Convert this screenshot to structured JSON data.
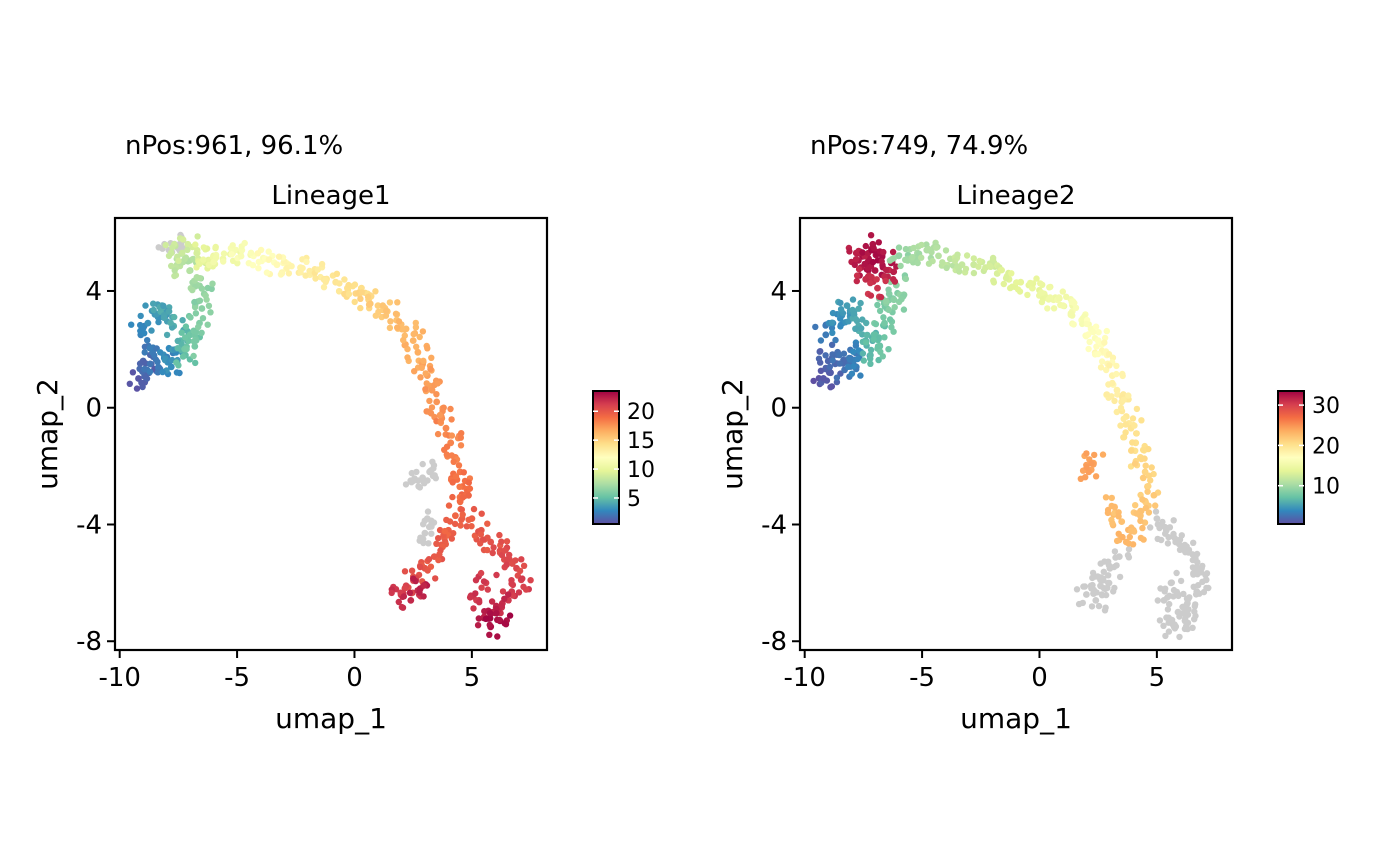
{
  "chart_data": [
    {
      "type": "scatter",
      "subtitle": "nPos:961, 96.1%",
      "title": "Lineage1",
      "xlabel": "umap_1",
      "ylabel": "umap_2",
      "xlim": [
        -10.2,
        8.2
      ],
      "ylim": [
        -8.3,
        6.5
      ],
      "xticks": [
        -10,
        -5,
        0,
        5
      ],
      "yticks": [
        -8,
        -4,
        0,
        4
      ],
      "xtick_labels": [
        "-10",
        "-5",
        "0",
        "5"
      ],
      "ytick_labels": [
        "-8",
        "-4",
        "0",
        "4"
      ],
      "colorbar": {
        "min": 0.5,
        "max": 23.5,
        "ticks": [
          5,
          10,
          15,
          20
        ],
        "tick_labels": [
          "5",
          "10",
          "15",
          "20"
        ]
      },
      "color_scale": "Spectral (blue-green-yellow-red)",
      "na_color": "#cccccc",
      "legend_position": "right",
      "grid": false,
      "points": [
        [
          -9.2,
          1.0,
          0.8
        ],
        [
          -8.9,
          1.2,
          1.3
        ],
        [
          -9.0,
          1.6,
          1.6
        ],
        [
          -8.7,
          1.5,
          2.0
        ],
        [
          -8.6,
          1.9,
          2.3
        ],
        [
          -8.3,
          1.3,
          2.4
        ],
        [
          -8.1,
          1.7,
          2.8
        ],
        [
          -7.8,
          1.4,
          3.0
        ],
        [
          -7.6,
          1.9,
          3.2
        ],
        [
          -9.1,
          2.5,
          2.6
        ],
        [
          -8.8,
          2.9,
          3.1
        ],
        [
          -8.5,
          3.2,
          3.4
        ],
        [
          -8.2,
          3.5,
          3.8
        ],
        [
          -7.9,
          3.3,
          4.0
        ],
        [
          -7.7,
          2.8,
          4.3
        ],
        [
          -7.4,
          2.3,
          4.6
        ],
        [
          -7.2,
          1.8,
          5.0
        ],
        [
          -7.0,
          2.5,
          5.4
        ],
        [
          -6.8,
          2.1,
          5.7
        ],
        [
          -6.6,
          2.9,
          6.0
        ],
        [
          -6.5,
          3.4,
          6.3
        ],
        [
          -6.4,
          3.9,
          6.6
        ],
        [
          -6.7,
          4.2,
          7.0
        ],
        [
          -7.0,
          4.7,
          7.4
        ],
        [
          -7.3,
          5.0,
          7.8
        ],
        [
          -7.6,
          4.8,
          8.2
        ],
        [
          -7.8,
          5.3,
          8.6
        ],
        [
          -7.1,
          5.6,
          9.0
        ],
        [
          -6.7,
          5.3,
          9.4
        ],
        [
          -6.3,
          5.0,
          9.8
        ],
        [
          -6.0,
          5.2,
          10.2
        ],
        [
          -5.6,
          5.1,
          10.6
        ],
        [
          -5.2,
          5.3,
          11.0
        ],
        [
          -4.8,
          5.4,
          11.4
        ],
        [
          -4.3,
          5.2,
          11.8
        ],
        [
          -3.8,
          5.1,
          12.1
        ],
        [
          -3.3,
          4.9,
          12.4
        ],
        [
          -2.8,
          4.9,
          12.7
        ],
        [
          -2.3,
          4.8,
          13.0
        ],
        [
          -1.8,
          4.6,
          13.3
        ],
        [
          -1.3,
          4.4,
          13.6
        ],
        [
          -0.8,
          4.3,
          13.9
        ],
        [
          -0.3,
          4.1,
          14.2
        ],
        [
          0.2,
          3.9,
          14.5
        ],
        [
          0.6,
          3.7,
          14.8
        ],
        [
          1.0,
          3.5,
          15.1
        ],
        [
          1.4,
          3.3,
          15.4
        ],
        [
          1.8,
          3.0,
          15.7
        ],
        [
          2.2,
          2.7,
          16.0
        ],
        [
          2.5,
          2.3,
          16.3
        ],
        [
          2.7,
          1.9,
          16.6
        ],
        [
          2.9,
          1.5,
          16.9
        ],
        [
          3.1,
          1.1,
          17.1
        ],
        [
          3.3,
          0.6,
          17.3
        ],
        [
          3.5,
          0.2,
          17.5
        ],
        [
          3.7,
          -0.3,
          17.7
        ],
        [
          3.9,
          -0.7,
          17.9
        ],
        [
          4.1,
          -1.2,
          18.1
        ],
        [
          4.3,
          -1.7,
          18.3
        ],
        [
          4.5,
          -2.2,
          18.6
        ],
        [
          4.6,
          -2.7,
          18.9
        ],
        [
          4.5,
          -3.2,
          19.1
        ],
        [
          4.3,
          -3.7,
          19.3
        ],
        [
          4.0,
          -4.2,
          19.5
        ],
        [
          3.7,
          -4.7,
          19.7
        ],
        [
          3.4,
          -5.1,
          19.9
        ],
        [
          3.0,
          -5.5,
          20.1
        ],
        [
          2.6,
          -5.9,
          20.4
        ],
        [
          2.2,
          -6.1,
          21.0
        ],
        [
          2.0,
          -6.4,
          21.6
        ],
        [
          2.4,
          -6.6,
          22.0
        ],
        [
          2.8,
          -6.2,
          22.4
        ],
        [
          5.0,
          -3.8,
          19.6
        ],
        [
          5.4,
          -4.2,
          19.9
        ],
        [
          5.8,
          -4.6,
          20.2
        ],
        [
          6.2,
          -4.9,
          20.4
        ],
        [
          6.6,
          -5.2,
          20.6
        ],
        [
          6.9,
          -5.5,
          20.8
        ],
        [
          7.1,
          -5.9,
          21.0
        ],
        [
          6.7,
          -6.3,
          21.4
        ],
        [
          6.3,
          -6.7,
          21.8
        ],
        [
          5.9,
          -7.0,
          22.2
        ],
        [
          5.5,
          -7.2,
          22.6
        ],
        [
          5.8,
          -7.5,
          23.0
        ],
        [
          6.2,
          -7.3,
          23.2
        ],
        [
          5.3,
          -6.6,
          21.6
        ],
        [
          5.6,
          -6.0,
          21.2
        ],
        [
          3.2,
          -2.2,
          null
        ],
        [
          2.9,
          -2.4,
          null
        ],
        [
          2.5,
          -2.5,
          null
        ],
        [
          3.1,
          -3.8,
          null
        ],
        [
          3.0,
          -4.3,
          null
        ],
        [
          -7.4,
          5.6,
          null
        ],
        [
          -7.9,
          5.4,
          null
        ]
      ]
    },
    {
      "type": "scatter",
      "subtitle": "nPos:749, 74.9%",
      "title": "Lineage2",
      "xlabel": "umap_1",
      "ylabel": "umap_2",
      "xlim": [
        -10.2,
        8.2
      ],
      "ylim": [
        -8.3,
        6.5
      ],
      "xticks": [
        -10,
        -5,
        0,
        5
      ],
      "yticks": [
        -8,
        -4,
        0,
        4
      ],
      "xtick_labels": [
        "-10",
        "-5",
        "0",
        "5"
      ],
      "ytick_labels": [
        "-8",
        "-4",
        "0",
        "4"
      ],
      "colorbar": {
        "min": 0.5,
        "max": 33.5,
        "ticks": [
          10,
          20,
          30
        ],
        "tick_labels": [
          "10",
          "20",
          "30"
        ]
      },
      "color_scale": "Spectral (blue-green-yellow-red)",
      "na_color": "#cccccc",
      "legend_position": "right",
      "grid": false,
      "points": [
        [
          -9.2,
          1.0,
          0.8
        ],
        [
          -8.9,
          1.2,
          1.3
        ],
        [
          -9.0,
          1.6,
          1.7
        ],
        [
          -8.7,
          1.5,
          2.1
        ],
        [
          -8.6,
          1.9,
          2.4
        ],
        [
          -8.3,
          1.3,
          2.6
        ],
        [
          -8.1,
          1.7,
          3.0
        ],
        [
          -7.8,
          1.4,
          3.3
        ],
        [
          -7.6,
          1.9,
          3.6
        ],
        [
          -9.1,
          2.5,
          3.0
        ],
        [
          -8.8,
          2.9,
          3.8
        ],
        [
          -8.5,
          3.2,
          4.4
        ],
        [
          -8.2,
          3.5,
          5.0
        ],
        [
          -7.9,
          3.3,
          5.4
        ],
        [
          -7.7,
          2.8,
          5.8
        ],
        [
          -7.4,
          2.3,
          6.2
        ],
        [
          -7.2,
          1.8,
          6.6
        ],
        [
          -7.0,
          2.5,
          7.0
        ],
        [
          -6.8,
          2.1,
          7.4
        ],
        [
          -6.6,
          2.9,
          7.8
        ],
        [
          -6.5,
          3.4,
          8.2
        ],
        [
          -6.4,
          3.9,
          8.6
        ],
        [
          -6.1,
          4.2,
          9.0
        ],
        [
          -6.2,
          3.7,
          8.8
        ],
        [
          -7.0,
          4.7,
          32.5
        ],
        [
          -7.3,
          5.0,
          32.8
        ],
        [
          -7.6,
          4.8,
          32.2
        ],
        [
          -7.8,
          5.3,
          31.8
        ],
        [
          -7.1,
          5.6,
          32.6
        ],
        [
          -6.7,
          5.3,
          33.0
        ],
        [
          -6.3,
          5.0,
          32.4
        ],
        [
          -6.6,
          4.5,
          31.6
        ],
        [
          -7.4,
          4.4,
          31.2
        ],
        [
          -6.9,
          4.1,
          30.8
        ],
        [
          -6.0,
          5.2,
          9.4
        ],
        [
          -5.6,
          5.1,
          9.8
        ],
        [
          -5.2,
          5.3,
          10.2
        ],
        [
          -4.8,
          5.4,
          10.6
        ],
        [
          -4.3,
          5.2,
          11.0
        ],
        [
          -3.8,
          5.1,
          11.4
        ],
        [
          -3.3,
          4.9,
          11.8
        ],
        [
          -2.8,
          4.9,
          12.2
        ],
        [
          -2.3,
          4.8,
          12.6
        ],
        [
          -1.8,
          4.6,
          13.0
        ],
        [
          -1.3,
          4.4,
          13.4
        ],
        [
          -0.8,
          4.3,
          13.8
        ],
        [
          -0.3,
          4.1,
          14.2
        ],
        [
          0.2,
          3.9,
          14.6
        ],
        [
          0.6,
          3.7,
          15.0
        ],
        [
          1.0,
          3.5,
          15.4
        ],
        [
          1.4,
          3.3,
          15.8
        ],
        [
          1.8,
          3.0,
          16.2
        ],
        [
          2.2,
          2.7,
          16.6
        ],
        [
          2.5,
          2.3,
          17.0
        ],
        [
          2.7,
          1.9,
          17.4
        ],
        [
          2.9,
          1.5,
          17.8
        ],
        [
          3.1,
          1.1,
          18.2
        ],
        [
          3.3,
          0.6,
          18.6
        ],
        [
          3.5,
          0.2,
          19.0
        ],
        [
          3.7,
          -0.3,
          19.4
        ],
        [
          3.9,
          -0.7,
          19.8
        ],
        [
          4.1,
          -1.2,
          20.2
        ],
        [
          4.3,
          -1.7,
          20.6
        ],
        [
          4.5,
          -2.2,
          21.0
        ],
        [
          4.6,
          -2.7,
          21.4
        ],
        [
          4.5,
          -3.2,
          21.8
        ],
        [
          4.3,
          -3.7,
          22.2
        ],
        [
          4.0,
          -4.2,
          22.6
        ],
        [
          3.7,
          -4.6,
          23.0
        ],
        [
          3.5,
          -3.9,
          22.4
        ],
        [
          3.2,
          -3.4,
          22.8
        ],
        [
          2.3,
          -1.9,
          24.0
        ],
        [
          2.1,
          -2.2,
          24.4
        ],
        [
          5.0,
          -3.8,
          null
        ],
        [
          5.4,
          -4.2,
          null
        ],
        [
          5.8,
          -4.6,
          null
        ],
        [
          6.2,
          -4.9,
          null
        ],
        [
          6.6,
          -5.2,
          null
        ],
        [
          6.9,
          -5.5,
          null
        ],
        [
          7.1,
          -5.9,
          null
        ],
        [
          6.7,
          -6.3,
          null
        ],
        [
          6.3,
          -6.7,
          null
        ],
        [
          5.9,
          -7.0,
          null
        ],
        [
          5.5,
          -7.2,
          null
        ],
        [
          5.8,
          -7.5,
          null
        ],
        [
          6.2,
          -7.3,
          null
        ],
        [
          5.3,
          -6.6,
          null
        ],
        [
          5.6,
          -6.0,
          null
        ],
        [
          3.4,
          -5.1,
          null
        ],
        [
          3.0,
          -5.5,
          null
        ],
        [
          2.6,
          -5.9,
          null
        ],
        [
          2.2,
          -6.1,
          null
        ],
        [
          2.0,
          -6.4,
          null
        ],
        [
          2.4,
          -6.6,
          null
        ],
        [
          2.8,
          -6.2,
          null
        ]
      ]
    }
  ]
}
